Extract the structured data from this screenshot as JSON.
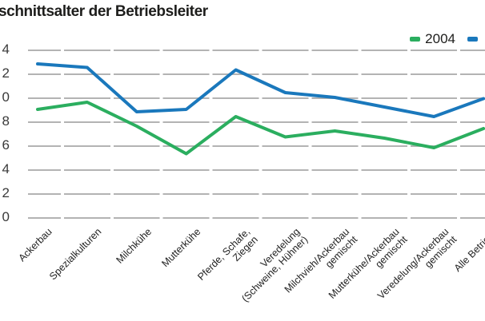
{
  "title": "schnittsalter der Betriebsleiter",
  "legend": {
    "items": [
      {
        "label": "2004",
        "color": "#2bae5f"
      },
      {
        "label": "",
        "color": "#1a78bc"
      }
    ]
  },
  "chart_data": {
    "type": "line",
    "title": "schnittsalter der Betriebsleiter",
    "categories": [
      "Ackerbau",
      "Spezialkulturen",
      "Milchkühe",
      "Mutterkühe",
      "Pferde, Schafe,\nZiegen",
      "Veredelung\n(Schweine, Hühner)",
      "Milchvieh/Ackerbau\ngemischt",
      "Mutterkühe/Ackerbau\ngemischt",
      "Veredelung/Ackerbau\ngemischt",
      "Alle Betriebe"
    ],
    "series": [
      {
        "name": "2004",
        "color": "#2bae5f",
        "values": [
          49.0,
          49.6,
          47.6,
          45.3,
          48.4,
          46.7,
          47.2,
          46.6,
          45.8,
          47.4
        ]
      },
      {
        "name": "",
        "color": "#1a78bc",
        "values": [
          52.8,
          52.5,
          48.8,
          49.0,
          52.3,
          50.4,
          50.0,
          49.2,
          48.4,
          49.9
        ]
      }
    ],
    "xlabel": "",
    "ylabel": "",
    "ylim": [
      40,
      54
    ],
    "y_tick_step": 2,
    "y_tick_labels_visible": [
      "4",
      "2",
      "0",
      "8",
      "6",
      "4",
      "2",
      "0"
    ],
    "y_tick_values_implied": [
      54,
      52,
      50,
      48,
      46,
      44,
      42,
      40
    ],
    "grid": "horizontal-dashed",
    "legend_position": "top-right",
    "gridline_color": "#b3b3b3"
  }
}
